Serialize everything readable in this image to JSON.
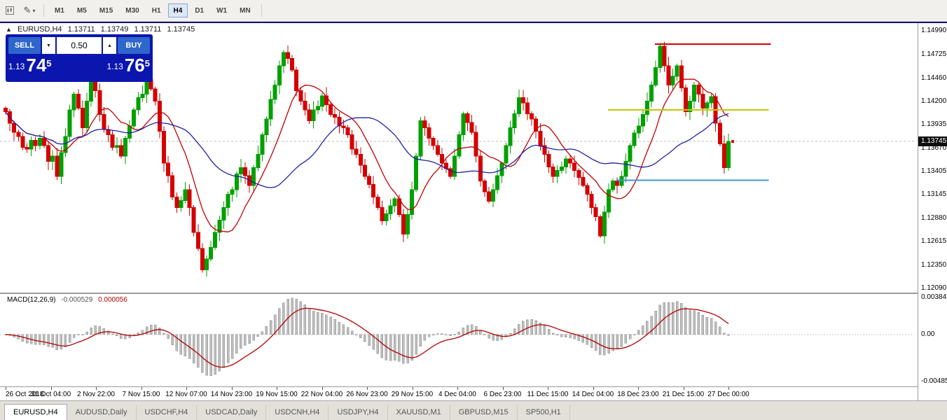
{
  "toolbar": {
    "timeframes": [
      "M1",
      "M5",
      "M15",
      "M30",
      "H1",
      "H4",
      "D1",
      "W1",
      "MN"
    ],
    "active_timeframe": "H4"
  },
  "chart_header": {
    "symbol": "EURUSD,H4",
    "open": "1.13711",
    "high": "1.13749",
    "low": "1.13711",
    "close": "1.13745"
  },
  "trade_panel": {
    "sell_label": "SELL",
    "buy_label": "BUY",
    "lot": "0.50",
    "sell_price": {
      "prefix": "1.13",
      "big": "74",
      "sup": "5"
    },
    "buy_price": {
      "prefix": "1.13",
      "big": "76",
      "sup": "5"
    }
  },
  "colors": {
    "bull": "#00a000",
    "bear": "#d40000",
    "ma_fast": "#c00000",
    "ma_slow": "#2121a3",
    "macd_hist_fill": "#bdbdbd",
    "macd_hist_stroke": "#8f8f8f",
    "macd_signal": "#b30000",
    "bid_line": "#bbbbbb",
    "badge_bg": "#0d0d0d",
    "panel_bg": "#0a16ad",
    "panel_button": "#2f66cc"
  },
  "chart_data": {
    "type": "candlestick",
    "symbol": "EURUSD",
    "timeframe": "H4",
    "last_price": 1.13745,
    "last_price_label": "1.13745",
    "first_open": 1.1412,
    "price_range": {
      "top": 1.1508,
      "bottom": 1.12042
    },
    "price_axis_labels": [
      "1.14990",
      "1.14725",
      "1.14460",
      "1.14200",
      "1.13935",
      "1.13670",
      "1.13405",
      "1.13145",
      "1.12880",
      "1.12615",
      "1.12350",
      "1.12090"
    ],
    "time_axis_labels": [
      "26 Oct 2018",
      "31 Oct 04:00",
      "2 Nov 22:00",
      "7 Nov 15:00",
      "12 Nov 07:00",
      "14 Nov 23:00",
      "19 Nov 15:00",
      "22 Nov 04:00",
      "26 Nov 23:00",
      "29 Nov 15:00",
      "4 Dec 04:00",
      "6 Dec 23:00",
      "11 Dec 15:00",
      "14 Dec 04:00",
      "18 Dec 23:00",
      "21 Dec 15:00",
      "27 Dec 00:00"
    ],
    "closes": [
      1.1408,
      1.1395,
      1.1385,
      1.138,
      1.1368,
      1.1366,
      1.1376,
      1.137,
      1.1378,
      1.137,
      1.1352,
      1.1358,
      1.1335,
      1.1362,
      1.138,
      1.141,
      1.1428,
      1.1412,
      1.139,
      1.142,
      1.1448,
      1.1432,
      1.1405,
      1.1388,
      1.1382,
      1.1368,
      1.137,
      1.1358,
      1.1378,
      1.1392,
      1.141,
      1.1424,
      1.1428,
      1.1444,
      1.1434,
      1.142,
      1.1386,
      1.135,
      1.1336,
      1.1312,
      1.13,
      1.1308,
      1.132,
      1.13,
      1.1272,
      1.1254,
      1.123,
      1.1242,
      1.1255,
      1.1272,
      1.1286,
      1.13,
      1.1315,
      1.132,
      1.1338,
      1.1345,
      1.1336,
      1.1325,
      1.1345,
      1.136,
      1.1382,
      1.14,
      1.1422,
      1.1438,
      1.146,
      1.1475,
      1.1468,
      1.1455,
      1.1432,
      1.142,
      1.141,
      1.1398,
      1.141,
      1.1414,
      1.1426,
      1.1416,
      1.1405,
      1.1402,
      1.1392,
      1.139,
      1.1382,
      1.1366,
      1.136,
      1.1348,
      1.1335,
      1.1326,
      1.1312,
      1.13,
      1.1285,
      1.1293,
      1.1302,
      1.131,
      1.1292,
      1.127,
      1.1292,
      1.132,
      1.1358,
      1.1398,
      1.139,
      1.1378,
      1.137,
      1.136,
      1.135,
      1.1344,
      1.1335,
      1.1358,
      1.1382,
      1.1406,
      1.1396,
      1.1385,
      1.1358,
      1.133,
      1.1318,
      1.1307,
      1.132,
      1.1336,
      1.135,
      1.137,
      1.139,
      1.1406,
      1.1424,
      1.1418,
      1.1406,
      1.14,
      1.1386,
      1.137,
      1.136,
      1.1346,
      1.1335,
      1.1342,
      1.1346,
      1.1355,
      1.135,
      1.1342,
      1.1334,
      1.1325,
      1.1315,
      1.13,
      1.129,
      1.1268,
      1.1295,
      1.132,
      1.133,
      1.1325,
      1.1335,
      1.1352,
      1.137,
      1.1384,
      1.1392,
      1.1405,
      1.142,
      1.1438,
      1.1458,
      1.1482,
      1.146,
      1.1438,
      1.1448,
      1.146,
      1.1435,
      1.1408,
      1.142,
      1.1438,
      1.1428,
      1.1412,
      1.1418,
      1.1425,
      1.1395,
      1.1372,
      1.1345,
      1.13745
    ],
    "moving_averages": [
      {
        "name": "ma-fast",
        "period": 10,
        "color": "#c00000"
      },
      {
        "name": "ma-slow",
        "period": 28,
        "color": "#2121a3"
      }
    ],
    "hlines": [
      {
        "name": "resistance-line",
        "color": "#d40000",
        "price": 1.14845,
        "from": 151.8,
        "to": 178.9
      },
      {
        "name": "pivot-line",
        "color": "#c6c600",
        "price": 1.141,
        "from": 140.8,
        "to": 178.4
      },
      {
        "name": "support-line",
        "color": "#3d96e0",
        "price": 1.1331,
        "from": 142.8,
        "to": 178.4
      }
    ],
    "macd": {
      "label": "MACD(12,26,9)",
      "value_main": "-0.000529",
      "value_signal": "0.000056",
      "params": [
        12,
        26,
        9
      ],
      "axis_labels": [
        "0.003847",
        "0.00",
        "-0.004856"
      ],
      "range": {
        "top": 0.0042,
        "bottom": -0.00537
      },
      "scale_max_pos": 0.0038,
      "scale_max_neg": 0.0047
    }
  },
  "bottom_tabs": {
    "tabs": [
      "EURUSD,H4",
      "AUDUSD,Daily",
      "USDCHF,H4",
      "USDCAD,Daily",
      "USDCNH,H4",
      "USDJPY,H4",
      "XAUUSD,M1",
      "GBPUSD,M15",
      "SP500,H1"
    ],
    "active_tab": "EURUSD,H4"
  }
}
